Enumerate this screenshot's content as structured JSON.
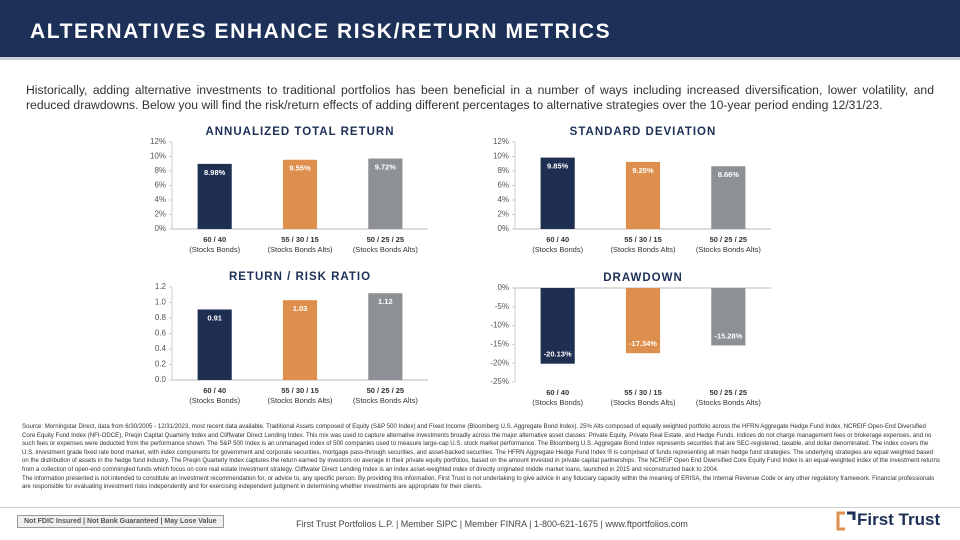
{
  "header": {
    "title": "ALTERNATIVES ENHANCE RISK/RETURN METRICS"
  },
  "intro": "Historically, adding alternative investments to traditional portfolios has been beneficial in a number of ways including increased diversification, lower volatility, and reduced drawdowns. Below you will find the risk/return effects of adding different percentages to alternative strategies over the 10-year period ending 12/31/23.",
  "chart_data": [
    {
      "type": "bar",
      "title": "ANNUALIZED TOTAL RETURN",
      "categories": [
        [
          "60 / 40",
          "(Stocks Bonds)"
        ],
        [
          "55 / 30 / 15",
          "(Stocks Bonds Alts)"
        ],
        [
          "50 / 25 / 25",
          "(Stocks Bonds Alts)"
        ]
      ],
      "values": [
        8.98,
        9.55,
        9.72
      ],
      "value_labels": [
        "8.98%",
        "9.55%",
        "9.72%"
      ],
      "colors": [
        "#1e2f52",
        "#de8f4e",
        "#8d9094"
      ],
      "ylim": [
        0,
        12
      ],
      "yticks": [
        {
          "value": 0,
          "label": "0%"
        },
        {
          "value": 2,
          "label": "2%"
        },
        {
          "value": 4,
          "label": "4%"
        },
        {
          "value": 6,
          "label": "6%"
        },
        {
          "value": 8,
          "label": "8%"
        },
        {
          "value": 10,
          "label": "10%"
        },
        {
          "value": 12,
          "label": "12%"
        }
      ],
      "grid": false
    },
    {
      "type": "bar",
      "title": "STANDARD DEVIATION",
      "categories": [
        [
          "60 / 40",
          "(Stocks Bonds)"
        ],
        [
          "55 / 30 / 15",
          "(Stocks Bonds Alts)"
        ],
        [
          "50 / 25 / 25",
          "(Stocks Bonds Alts)"
        ]
      ],
      "values": [
        9.85,
        9.25,
        8.66
      ],
      "value_labels": [
        "9.85%",
        "9.25%",
        "8.66%"
      ],
      "colors": [
        "#1e2f52",
        "#de8f4e",
        "#8d9094"
      ],
      "ylim": [
        0,
        12
      ],
      "yticks": [
        {
          "value": 0,
          "label": "0%"
        },
        {
          "value": 2,
          "label": "2%"
        },
        {
          "value": 4,
          "label": "4%"
        },
        {
          "value": 6,
          "label": "6%"
        },
        {
          "value": 8,
          "label": "8%"
        },
        {
          "value": 10,
          "label": "10%"
        },
        {
          "value": 12,
          "label": "12%"
        }
      ],
      "grid": false
    },
    {
      "type": "bar",
      "title": "RETURN / RISK RATIO",
      "categories": [
        [
          "60 / 40",
          "(Stocks Bonds)"
        ],
        [
          "55 / 30 / 15",
          "(Stocks Bonds Alts)"
        ],
        [
          "50 / 25 / 25",
          "(Stocks Bonds Alts)"
        ]
      ],
      "values": [
        0.91,
        1.03,
        1.12
      ],
      "colors": [
        "#1e2f52",
        "#de8f4e",
        "#8d9094"
      ],
      "ylim": [
        0,
        1.2
      ],
      "yticks": [
        {
          "value": 0,
          "label": "0.0"
        },
        0.2,
        0.4,
        0.6,
        0.8,
        {
          "value": 1,
          "label": "1.0"
        },
        1.2
      ],
      "grid": false
    },
    {
      "type": "bar",
      "title": "DRAWDOWN",
      "categories": [
        [
          "60 / 40",
          "(Stocks Bonds)"
        ],
        [
          "55 / 30 / 15",
          "(Stocks Bonds Alts)"
        ],
        [
          "50 / 25 / 25",
          "(Stocks Bonds Alts)"
        ]
      ],
      "values": [
        -20.13,
        -17.34,
        -15.28
      ],
      "value_labels": [
        "-20.13%",
        "-17.34%",
        "-15.28%"
      ],
      "colors": [
        "#1e2f52",
        "#de8f4e",
        "#8d9094"
      ],
      "ylim": [
        -25,
        0
      ],
      "yticks": [
        {
          "value": 0,
          "label": "0%"
        },
        {
          "value": -5,
          "label": "-5%"
        },
        {
          "value": -10,
          "label": "-10%"
        },
        {
          "value": -15,
          "label": "-15%"
        },
        {
          "value": -20,
          "label": "-20%"
        },
        {
          "value": -25,
          "label": "-25%"
        }
      ],
      "grid": false
    }
  ],
  "source": "Source: Morningstar Direct, data from 6/30/2005 - 12/31/2023, most recent data available. Traditional Assets composed of Equity (S&P 500 Index) and Fixed Income (Bloomberg U.S. Aggregate Bond Index). 25% Alts composed of equally weighted portfolio across the HFRN Aggregate Hedge Fund Index, NCREIF Open-End Diversified Core Equity Fund Index (NFI-ODCE), Preqin Capital Quarterly Index and Cliffwater Direct Lending Index. This mix was used to capture alternative investments broadly across the major alternative asset classes: Private Equity, Private Real Estate, and Hedge Funds. Indices do not charge management fees or brokerage expenses, and no such fees or expenses were deducted from the performance shown. The S&P 500 Index is an unmanaged index of 500 companies used to measure large-cap U.S. stock market performance. The Bloomberg U.S. Aggregate Bond Index represents securities that are SEC-registered, taxable, and dollar denominated. The index covers the U.S. investment grade fixed rate bond market, with index components for government and corporate securities, mortgage pass-through securities, and asset-backed securities. The HFRN Aggregate Hedge Fund Index ® is comprised of funds representing all main hedge fund strategies. The underlying strategies are equal weighted based on the distribution of assets in the hedge fund industry. The Preqin Quarterly Index  captures the return earned by investors on average in their private equity portfolios, based on the amount invested in private capital partnerships. The NCREIF Open End Diversified Core Equity Fund Index is an equal-weighted index of the investment returns from a collection of open-end commingled funds which focus on core real estate investment strategy. Cliffwater Direct Lending Index is an index asset-weighted index of directly originated middle market loans, launched in 2015 and reconstructed back to 2004.",
  "disclaimer": "The information presented is not intended to constitute an investment recommendation for, or advice to, any specific person. By providing this information, First Trust is not undertaking to give advice in any fiduciary capacity within the meaning of ERISA, the Internal Revenue Code or any other regulatory framework. Financial professionals are responsible for evaluating investment risks independently and for exercising independent judgment in determining whether investments are appropriate for their clients.",
  "footer": {
    "badge": "Not FDIC Insured | Not Bank Guaranteed | May Lose Value",
    "text": "First Trust Portfolios L.P. | Member SIPC | Member FINRA | 1-800-621-1675 | www.ftportfolios.com",
    "logo": "First Trust"
  }
}
